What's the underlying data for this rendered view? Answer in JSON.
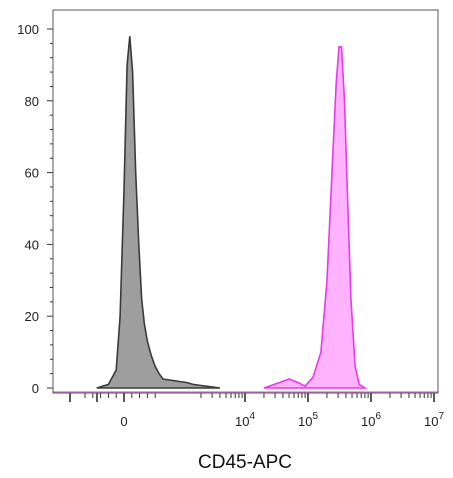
{
  "chart_data": {
    "type": "area",
    "title": "",
    "xlabel": "CD45-APC",
    "ylabel": "",
    "x_scale": "biexponential",
    "ylim": [
      0,
      100
    ],
    "y_ticks": [
      0,
      20,
      40,
      60,
      80,
      100
    ],
    "x_ticks": [
      {
        "value": 0,
        "base": "0",
        "exp": ""
      },
      {
        "value": 10000,
        "base": "10",
        "exp": "4"
      },
      {
        "value": 100000,
        "base": "10",
        "exp": "5"
      },
      {
        "value": 1000000,
        "base": "10",
        "exp": "6"
      },
      {
        "value": 10000000,
        "base": "10",
        "exp": "7"
      }
    ],
    "grid": false,
    "series": [
      {
        "color": "#9e9e9e",
        "line_color": "#3a3a3a",
        "x": [
          -700,
          -400,
          -200,
          -100,
          0,
          80,
          150,
          220,
          300,
          380,
          450,
          520,
          600,
          700,
          800,
          900,
          1000,
          1200,
          1500,
          2000,
          3000,
          4000
        ],
        "y": [
          0,
          1,
          5,
          20,
          55,
          90,
          98,
          88,
          60,
          40,
          25,
          18,
          13,
          9,
          6,
          4,
          2.5,
          1.5,
          1,
          0.7,
          0.3,
          0
        ]
      },
      {
        "color": "#ffb3ff",
        "line_color": "#e83ae8",
        "x": [
          20000,
          35000,
          50000,
          70000,
          90000,
          120000,
          160000,
          200000,
          240000,
          280000,
          310000,
          340000,
          380000,
          420000,
          480000,
          560000,
          650000,
          800000
        ],
        "y": [
          0,
          1.5,
          2.5,
          1.5,
          0.5,
          3,
          10,
          30,
          60,
          85,
          95,
          95,
          80,
          55,
          25,
          6,
          1,
          0
        ]
      }
    ]
  }
}
